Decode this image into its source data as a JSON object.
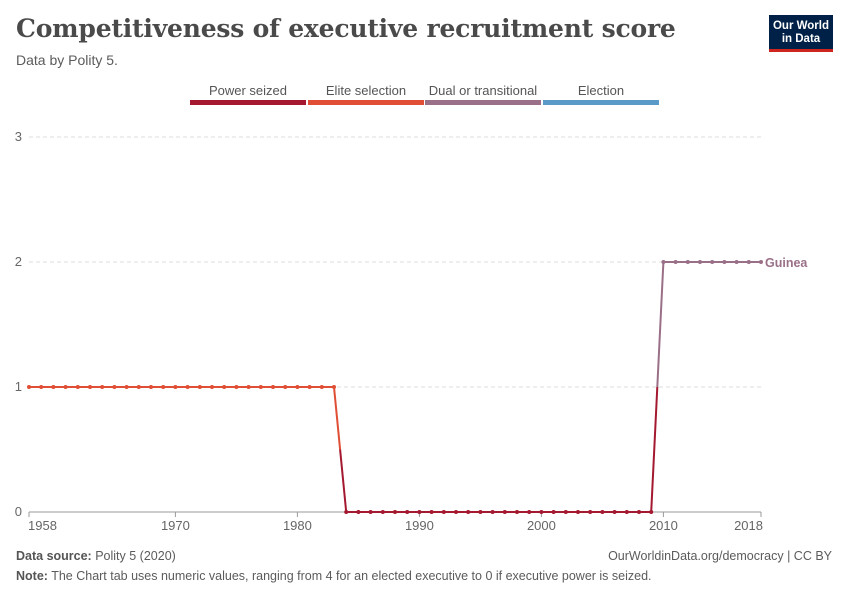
{
  "header": {
    "title": "Competitiveness of executive recruitment score",
    "subtitle": "Data by Polity 5."
  },
  "logo": {
    "line1": "Our World",
    "line2": "in Data"
  },
  "legend": [
    {
      "label": "Power seized",
      "color": "#a4192f"
    },
    {
      "label": "Elite selection",
      "color": "#e04f35"
    },
    {
      "label": "Dual or transitional",
      "color": "#9a7088"
    },
    {
      "label": "Election",
      "color": "#5a9ac8"
    }
  ],
  "footer": {
    "source_label": "Data source:",
    "source_text": "Polity 5 (2020)",
    "note_label": "Note:",
    "note_text": "The Chart tab uses numeric values, ranging from 4 for an elected executive to 0 if executive power is seized.",
    "link": "OurWorldinData.org/democracy | CC BY"
  },
  "chart_data": {
    "type": "line",
    "title": "Competitiveness of executive recruitment score",
    "x_ticks": [
      "1958",
      "1970",
      "1980",
      "1990",
      "2000",
      "2010",
      "2018"
    ],
    "y_ticks": [
      "0",
      "1",
      "2",
      "3"
    ],
    "xlim": [
      1958,
      2018
    ],
    "ylim": [
      0,
      3
    ],
    "grid": "horizontal dashed",
    "series": [
      {
        "name": "Guinea",
        "x": [
          1958,
          1959,
          1960,
          1961,
          1962,
          1963,
          1964,
          1965,
          1966,
          1967,
          1968,
          1969,
          1970,
          1971,
          1972,
          1973,
          1974,
          1975,
          1976,
          1977,
          1978,
          1979,
          1980,
          1981,
          1982,
          1983,
          1984,
          1985,
          1986,
          1987,
          1988,
          1989,
          1990,
          1991,
          1992,
          1993,
          1994,
          1995,
          1996,
          1997,
          1998,
          1999,
          2000,
          2001,
          2002,
          2003,
          2004,
          2005,
          2006,
          2007,
          2008,
          2009,
          2010,
          2011,
          2012,
          2013,
          2014,
          2015,
          2016,
          2017,
          2018
        ],
        "y": [
          1,
          1,
          1,
          1,
          1,
          1,
          1,
          1,
          1,
          1,
          1,
          1,
          1,
          1,
          1,
          1,
          1,
          1,
          1,
          1,
          1,
          1,
          1,
          1,
          1,
          1,
          0,
          0,
          0,
          0,
          0,
          0,
          0,
          0,
          0,
          0,
          0,
          0,
          0,
          0,
          0,
          0,
          0,
          0,
          0,
          0,
          0,
          0,
          0,
          0,
          0,
          0,
          2,
          2,
          2,
          2,
          2,
          2,
          2,
          2,
          2
        ]
      }
    ],
    "colors": {
      "1": "#e04f35",
      "0": "#a4192f",
      "2": "#9a7088"
    }
  }
}
